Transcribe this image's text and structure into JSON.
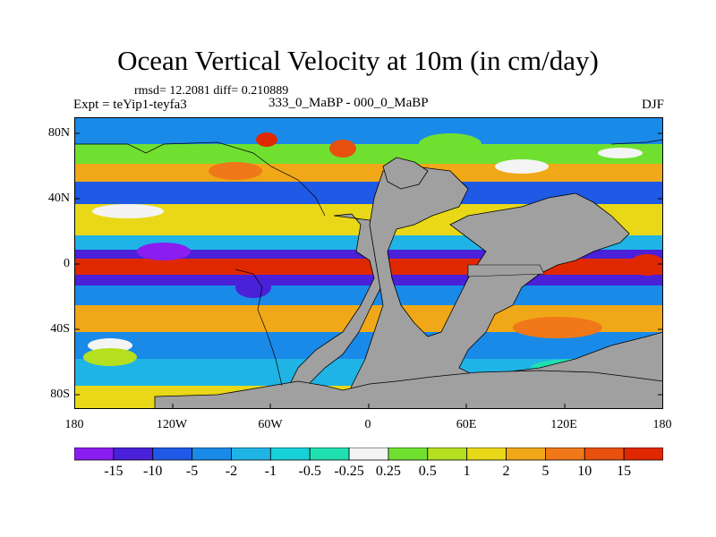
{
  "title": "Ocean Vertical Velocity at 10m (in cm/day)",
  "stats": "rmsd= 12.2081 diff= 0.210889",
  "experiment": "Expt = teYip1-teyfa3",
  "difference": "333_0_MaBP - 000_0_MaBP",
  "season": "DJF",
  "lat_ticks": [
    "80N",
    "40N",
    "0",
    "40S",
    "80S"
  ],
  "lon_ticks": [
    "180",
    "120W",
    "60W",
    "0",
    "60E",
    "120E",
    "180"
  ],
  "colorbar": {
    "labels": [
      "-15",
      "-10",
      "-5",
      "-2",
      "-1",
      "-0.5",
      "-0.25",
      "0.25",
      "0.5",
      "1",
      "2",
      "5",
      "10",
      "15"
    ],
    "colors": [
      "#8a1ef0",
      "#4a20d8",
      "#1e5ae6",
      "#1a8ae8",
      "#20b4e6",
      "#18d0d8",
      "#20e0b0",
      "#f4f4f4",
      "#70e030",
      "#b4e020",
      "#e8d818",
      "#f0a818",
      "#f07818",
      "#e85010",
      "#e02800"
    ]
  },
  "land_color": "#a0a0a0"
}
